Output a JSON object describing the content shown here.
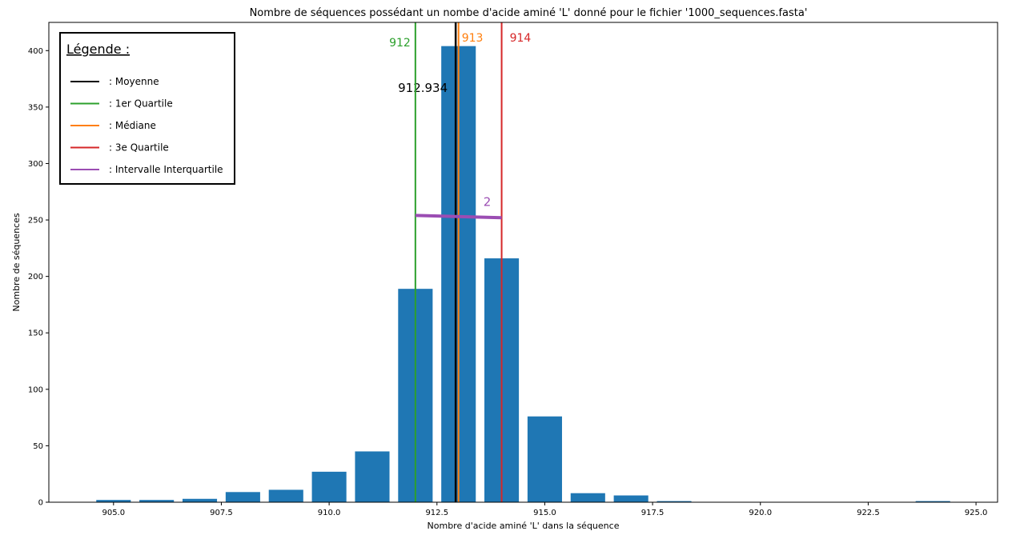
{
  "chart_data": {
    "type": "bar",
    "title": "Nombre de séquences possédant un nombe d'acide aminé 'L' donné pour le fichier '1000_sequences.fasta'",
    "xlabel": "Nombre d'acide aminé 'L' dans la séquence",
    "ylabel": "Nombre de séquences",
    "xlim": [
      903.5,
      925.5
    ],
    "ylim": [
      0,
      425
    ],
    "xticks": [
      905.0,
      907.5,
      910.0,
      912.5,
      915.0,
      917.5,
      920.0,
      922.5,
      925.0
    ],
    "xtick_labels": [
      "905.0",
      "907.5",
      "910.0",
      "912.5",
      "915.0",
      "917.5",
      "920.0",
      "922.5",
      "925.0"
    ],
    "yticks": [
      0,
      50,
      100,
      150,
      200,
      250,
      300,
      350,
      400
    ],
    "ytick_labels": [
      "0",
      "50",
      "100",
      "150",
      "200",
      "250",
      "300",
      "350",
      "400"
    ],
    "bar_color": "#1f77b4",
    "bar_width": 0.8,
    "bars": [
      {
        "x": 905,
        "value": 2
      },
      {
        "x": 906,
        "value": 2
      },
      {
        "x": 907,
        "value": 3
      },
      {
        "x": 908,
        "value": 9
      },
      {
        "x": 909,
        "value": 11
      },
      {
        "x": 910,
        "value": 27
      },
      {
        "x": 911,
        "value": 45
      },
      {
        "x": 912,
        "value": 189
      },
      {
        "x": 913,
        "value": 404
      },
      {
        "x": 914,
        "value": 216
      },
      {
        "x": 915,
        "value": 76
      },
      {
        "x": 916,
        "value": 8
      },
      {
        "x": 917,
        "value": 6
      },
      {
        "x": 918,
        "value": 1
      },
      {
        "x": 924,
        "value": 1
      }
    ],
    "reference_lines": [
      {
        "name": "Moyenne",
        "x": 912.934,
        "color": "#000000",
        "label": "912.934"
      },
      {
        "name": "1er Quartile",
        "x": 912,
        "color": "#2ca02c",
        "label": "912"
      },
      {
        "name": "Médiane",
        "x": 913,
        "color": "#ff7f0e",
        "label": "913"
      },
      {
        "name": "3e Quartile",
        "x": 914,
        "color": "#d62728",
        "label": "914"
      }
    ],
    "iqr": {
      "name": "Intervalle Interquartile",
      "x0": 912,
      "x1": 914,
      "y0": 254,
      "y1": 252,
      "color": "#9b4db3",
      "label": "2"
    },
    "legend": {
      "title": "Légende :",
      "placement": "top-left",
      "entries": [
        {
          "label": ": Moyenne",
          "color": "#000000"
        },
        {
          "label": ": 1er Quartile",
          "color": "#2ca02c"
        },
        {
          "label": ": Médiane",
          "color": "#ff7f0e"
        },
        {
          "label": ": 3e Quartile",
          "color": "#d62728"
        },
        {
          "label": ": Intervalle Interquartile",
          "color": "#9b4db3"
        }
      ]
    },
    "grid": false
  }
}
